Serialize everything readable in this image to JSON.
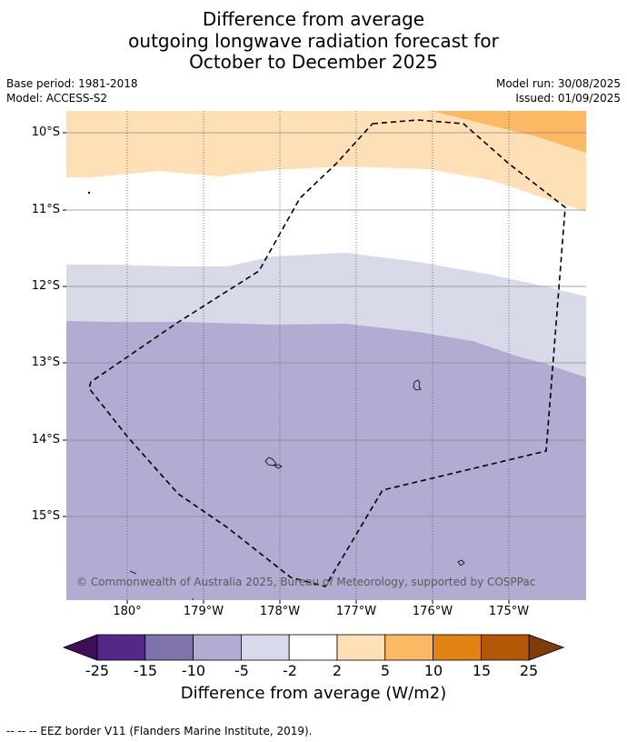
{
  "title": {
    "line1": "Difference from average",
    "line2": "outgoing longwave radiation forecast for",
    "line3": "October to December 2025"
  },
  "meta": {
    "base_period": "Base period: 1981-2018",
    "model": "Model: ACCESS-S2",
    "model_run": "Model run: 30/08/2025",
    "issued": "Issued: 01/09/2025"
  },
  "map": {
    "lat_labels": [
      "10°S",
      "11°S",
      "12°S",
      "13°S",
      "14°S",
      "15°S"
    ],
    "lon_labels": [
      "180°",
      "179°W",
      "178°W",
      "177°W",
      "176°W",
      "175°W"
    ],
    "copyright": "© Commonwealth of Australia 2025, Bureau of Meteorology, supported by COSPPac",
    "colors": {
      "strong_negative": "#b2abd2",
      "weak_negative": "#d8daea",
      "neutral": "#ffffff",
      "weak_positive": "#fee0b6",
      "positive": "#fdb863",
      "gridline": "#888888"
    }
  },
  "colorbar": {
    "ticks": [
      "-25",
      "-15",
      "-10",
      "-5",
      "-2",
      "2",
      "5",
      "10",
      "15",
      "25"
    ],
    "colors": [
      "#3f0f5a",
      "#542788",
      "#8073ac",
      "#b2abd2",
      "#d8daeb",
      "#ffffff",
      "#fee0b6",
      "#fdb863",
      "#e08214",
      "#b35806",
      "#7f3b08"
    ],
    "label": "Difference from average (W/m2)"
  },
  "footer": "-- -- -- EEZ border V11 (Flanders Marine Institute, 2019)."
}
